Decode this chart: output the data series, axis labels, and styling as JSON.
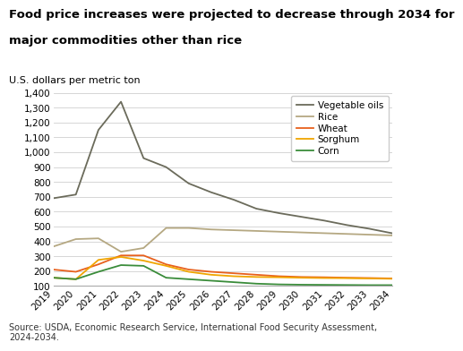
{
  "years": [
    2019,
    2020,
    2021,
    2022,
    2023,
    2024,
    2025,
    2026,
    2027,
    2028,
    2029,
    2030,
    2031,
    2032,
    2033,
    2034
  ],
  "vegetable_oils": [
    690,
    715,
    1150,
    1340,
    960,
    900,
    790,
    730,
    680,
    620,
    590,
    565,
    540,
    510,
    485,
    455
  ],
  "rice": [
    365,
    415,
    420,
    330,
    355,
    490,
    490,
    480,
    475,
    470,
    465,
    460,
    455,
    450,
    445,
    440
  ],
  "wheat": [
    210,
    195,
    245,
    305,
    305,
    245,
    210,
    195,
    185,
    175,
    165,
    160,
    158,
    155,
    153,
    150
  ],
  "sorghum": [
    155,
    145,
    275,
    295,
    270,
    235,
    195,
    175,
    165,
    160,
    158,
    155,
    153,
    152,
    150,
    148
  ],
  "corn": [
    155,
    145,
    195,
    240,
    235,
    155,
    145,
    135,
    125,
    115,
    110,
    108,
    107,
    106,
    105,
    105
  ],
  "colors": {
    "vegetable_oils": "#6b6b5b",
    "rice": "#b5a882",
    "wheat": "#e8601c",
    "sorghum": "#f0a500",
    "corn": "#3a8c3a"
  },
  "title_line1": "Food price increases were projected to decrease through 2034 for",
  "title_line2": "major commodities other than rice",
  "ylabel": "U.S. dollars per metric ton",
  "ylim": [
    100,
    1400
  ],
  "yticks": [
    100,
    200,
    300,
    400,
    500,
    600,
    700,
    800,
    900,
    1000,
    1100,
    1200,
    1300,
    1400
  ],
  "source": "Source: USDA, Economic Research Service, International Food Security Assessment,\n2024-2034.",
  "legend_labels": [
    "Vegetable oils",
    "Rice",
    "Wheat",
    "Sorghum",
    "Corn"
  ],
  "title_fontsize": 9.5,
  "label_fontsize": 8,
  "tick_fontsize": 7.5,
  "source_fontsize": 7.0
}
